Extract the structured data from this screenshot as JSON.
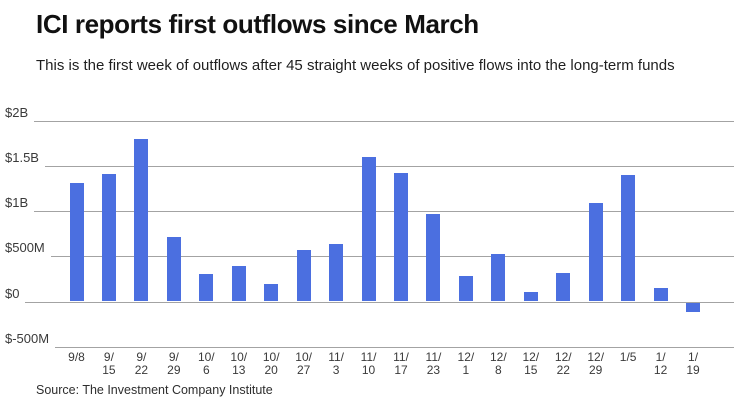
{
  "header": {
    "title": "ICI reports first outflows since March",
    "subtitle": "This is the first week of outflows after 45 straight weeks of positive flows into the long-term funds"
  },
  "footer": {
    "source": "Source: The Investment Company Institute"
  },
  "colors": {
    "bar": "#4b6fe0",
    "gridline": "#a3a3a3",
    "title_text": "#111111",
    "body_text": "#1f1f1f",
    "axis_text": "#3a3a3a"
  },
  "chart_data": {
    "type": "bar",
    "title": "ICI reports first outflows since March",
    "subtitle": "This is the first week of outflows after 45 straight weeks of positive flows into the long-term funds",
    "source": "Source: The Investment Company Institute",
    "unit": "USD millions (weekly long-term fund flows)",
    "categories": [
      "9/8",
      "9/15",
      "9/22",
      "9/29",
      "10/6",
      "10/13",
      "10/20",
      "10/27",
      "11/3",
      "11/10",
      "11/17",
      "11/23",
      "12/1",
      "12/8",
      "12/15",
      "12/22",
      "12/29",
      "1/5",
      "1/12",
      "1/19"
    ],
    "values": [
      1310,
      1410,
      1800,
      710,
      300,
      390,
      190,
      570,
      640,
      1595,
      1425,
      970,
      280,
      520,
      110,
      320,
      1090,
      1400,
      150,
      -110
    ],
    "xlabel": "",
    "ylabel": "",
    "ylim": [
      -500,
      2000
    ],
    "y_ticks": [
      {
        "label": "$2B",
        "value": 2000
      },
      {
        "label": "$1.5B",
        "value": 1500
      },
      {
        "label": "$1B",
        "value": 1000
      },
      {
        "label": "$500M",
        "value": 500
      },
      {
        "label": "$0",
        "value": 0
      },
      {
        "label": "$-500M",
        "value": -500
      }
    ],
    "grid": true,
    "legend": false
  }
}
